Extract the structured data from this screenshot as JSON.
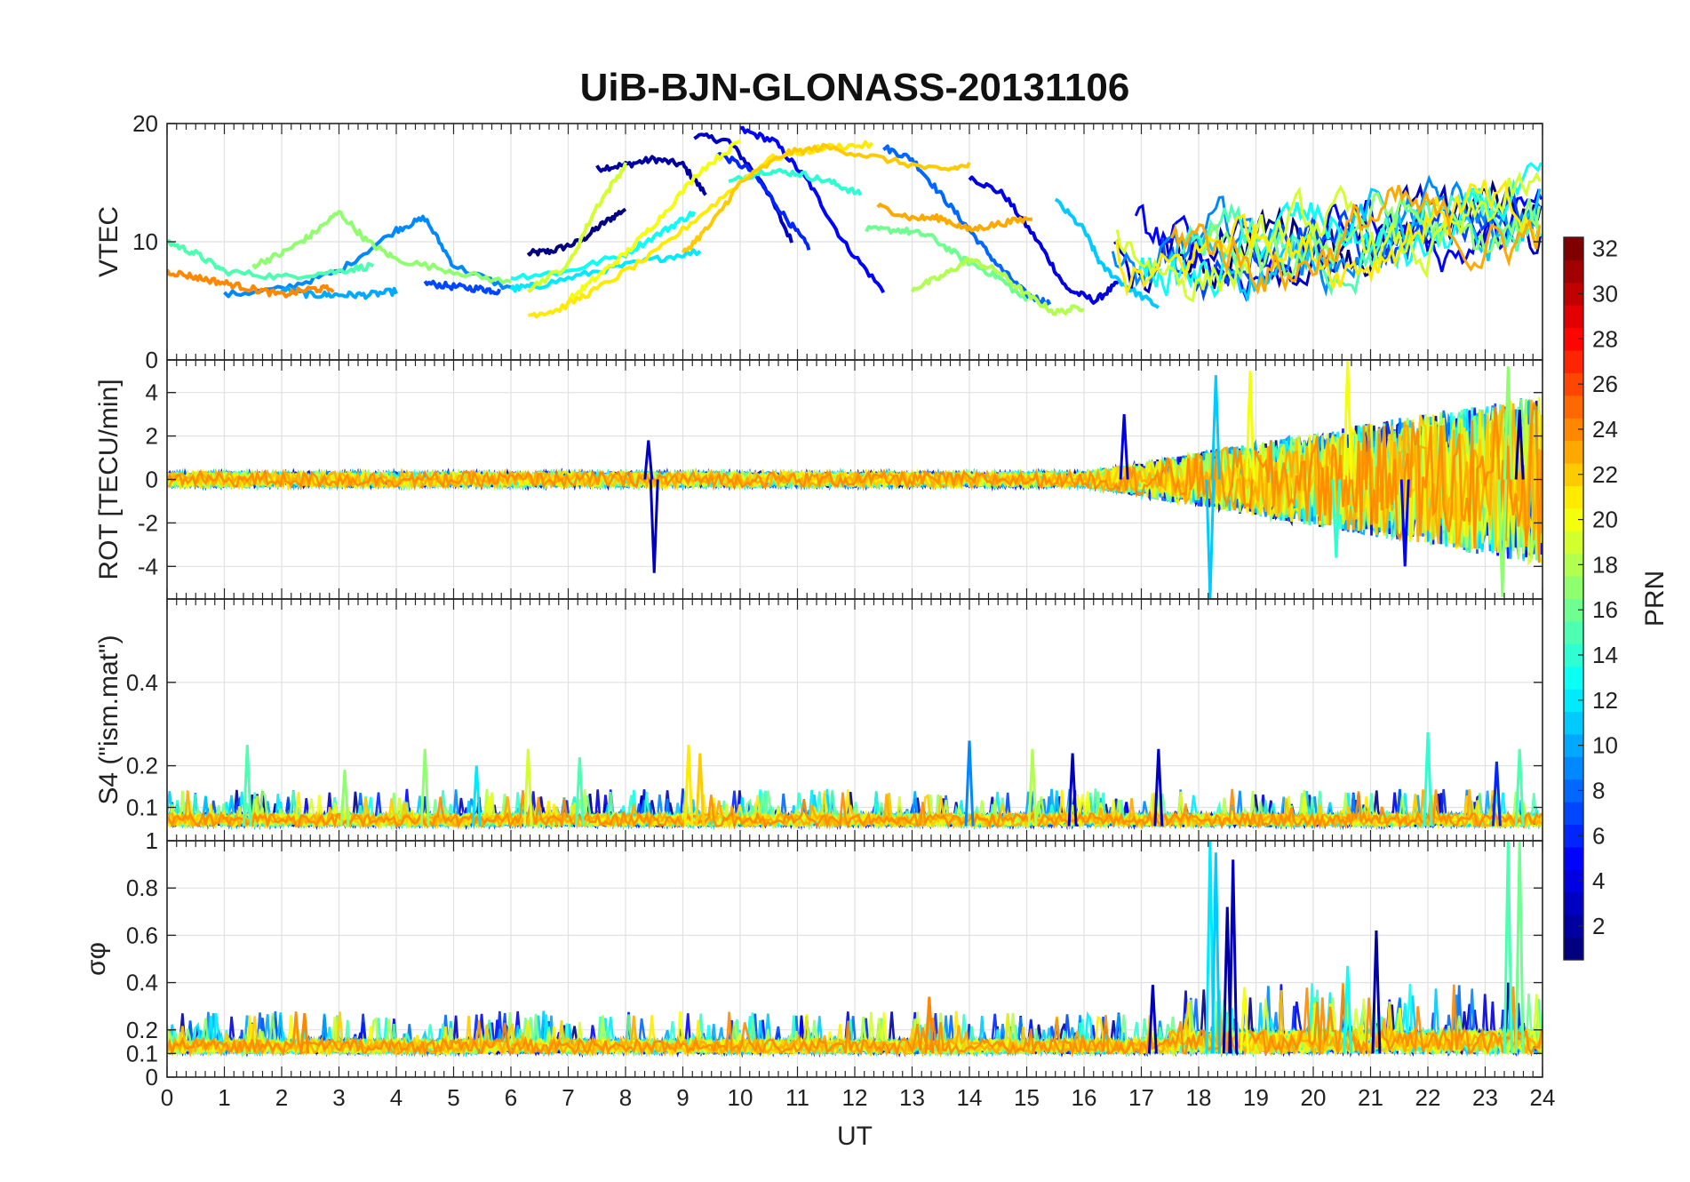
{
  "chart_data": {
    "type": "line",
    "title": "UiB-BJN-GLONASS-20131106",
    "xlabel": "UT",
    "xlim": [
      0,
      24
    ],
    "x_ticks": [
      "0",
      "1",
      "2",
      "3",
      "4",
      "5",
      "6",
      "7",
      "8",
      "9",
      "10",
      "11",
      "12",
      "13",
      "14",
      "15",
      "16",
      "17",
      "18",
      "19",
      "20",
      "21",
      "22",
      "23",
      "24"
    ],
    "grid": true,
    "colormap": "jet",
    "colorbar": {
      "label": "PRN",
      "range": [
        1,
        32
      ],
      "ticks": [
        "2",
        "4",
        "6",
        "8",
        "10",
        "12",
        "14",
        "16",
        "18",
        "20",
        "22",
        "24",
        "26",
        "28",
        "30",
        "32"
      ]
    },
    "panels": [
      {
        "id": "vtec",
        "ylabel": "VTEC",
        "ylim": [
          0,
          20
        ],
        "y_ticks": [
          "0",
          "10",
          "20"
        ],
        "series": [
          {
            "prn": 1,
            "x": [
              6.3,
              6.7,
              7.2,
              7.6,
              8.0
            ],
            "y": [
              9.0,
              9.2,
              10.0,
              11.5,
              12.8
            ]
          },
          {
            "prn": 2,
            "x": [
              7.5,
              8.0,
              8.5,
              9.0,
              9.4
            ],
            "y": [
              16.2,
              16.5,
              17.0,
              16.5,
              14.0
            ]
          },
          {
            "prn": 3,
            "x": [
              9.2,
              9.8,
              10.4,
              10.9
            ],
            "y": [
              19.0,
              18.5,
              15.0,
              10.0
            ]
          },
          {
            "prn": 4,
            "x": [
              14.0,
              14.6,
              15.2,
              15.7,
              16.2,
              16.6
            ],
            "y": [
              15.5,
              14.0,
              10.0,
              6.0,
              5.0,
              6.5
            ]
          },
          {
            "prn": 5,
            "x": [
              10.0,
              10.6,
              11.2,
              11.8,
              12.5
            ],
            "y": [
              19.5,
              18.5,
              15.0,
              10.0,
              5.8
            ]
          },
          {
            "prn": 6,
            "x": [
              9.6,
              10.2,
              10.8,
              11.2
            ],
            "y": [
              17.5,
              16.0,
              12.0,
              9.5
            ]
          },
          {
            "prn": 7,
            "x": [
              4.5,
              5.0,
              5.5,
              5.8
            ],
            "y": [
              6.5,
              6.2,
              6.0,
              5.8
            ]
          },
          {
            "prn": 8,
            "x": [
              12.5,
              13.0,
              13.5,
              14.0,
              14.5,
              15.0,
              15.4
            ],
            "y": [
              18.0,
              17.0,
              14.0,
              11.0,
              8.0,
              5.5,
              4.8
            ]
          },
          {
            "prn": 9,
            "x": [
              1.0,
              2.0,
              3.0,
              4.0,
              4.5,
              5.0,
              6.0
            ],
            "y": [
              5.5,
              6.0,
              7.5,
              11.0,
              12.0,
              8.0,
              6.0
            ]
          },
          {
            "prn": 10,
            "x": [
              2.0,
              2.5,
              3.0,
              3.5,
              4.0
            ],
            "y": [
              6.0,
              5.5,
              5.5,
              5.5,
              5.8
            ]
          },
          {
            "prn": 11,
            "x": [
              15.5,
              16.0,
              16.3,
              16.8,
              17.3
            ],
            "y": [
              13.5,
              11.0,
              8.0,
              6.0,
              4.5
            ]
          },
          {
            "prn": 12,
            "x": [
              6.0,
              6.5,
              7.5,
              8.5,
              9.3
            ],
            "y": [
              6.0,
              6.3,
              7.5,
              8.5,
              9.2
            ]
          },
          {
            "prn": 13,
            "x": [
              6.0,
              7.0,
              8.0,
              8.7,
              9.2
            ],
            "y": [
              7.0,
              7.5,
              9.0,
              11.0,
              12.5
            ]
          },
          {
            "prn": 14,
            "x": [
              9.8,
              10.4,
              11.0,
              11.6,
              12.1
            ],
            "y": [
              15.0,
              16.0,
              15.8,
              15.0,
              14.0
            ]
          },
          {
            "prn": 15,
            "x": [
              0.0,
              0.5,
              1.0,
              2.0,
              3.0,
              3.6
            ],
            "y": [
              10.0,
              9.0,
              7.5,
              7.0,
              7.5,
              8.0
            ]
          },
          {
            "prn": 16,
            "x": [
              12.2,
              12.8,
              13.3,
              13.9,
              14.5,
              15.0
            ],
            "y": [
              11.0,
              11.0,
              10.5,
              8.5,
              7.0,
              5.0
            ]
          },
          {
            "prn": 17,
            "x": [
              1.5,
              2.0,
              2.5,
              3.0,
              3.5,
              4.0,
              5.0,
              6.0
            ],
            "y": [
              8.0,
              9.0,
              10.5,
              12.5,
              10.0,
              8.5,
              7.5,
              6.5
            ]
          },
          {
            "prn": 18,
            "x": [
              13.0,
              13.5,
              14.0,
              14.5,
              15.0,
              15.5,
              16.0
            ],
            "y": [
              6.0,
              7.0,
              8.5,
              7.5,
              5.5,
              4.0,
              4.5
            ]
          },
          {
            "prn": 19,
            "x": [
              6.3,
              7.0,
              7.5,
              8.0
            ],
            "y": [
              6.0,
              8.0,
              13.0,
              16.5
            ]
          },
          {
            "prn": 20,
            "x": [
              7.0,
              7.5,
              8.0,
              8.6,
              9.3,
              10.0
            ],
            "y": [
              5.0,
              7.0,
              9.0,
              12.0,
              16.0,
              18.5
            ]
          },
          {
            "prn": 21,
            "x": [
              6.3,
              6.8,
              7.5,
              8.5,
              9.5,
              10.5,
              11.5,
              12.3
            ],
            "y": [
              3.8,
              4.2,
              6.0,
              9.0,
              13.0,
              17.0,
              18.0,
              18.2
            ]
          },
          {
            "prn": 22,
            "x": [
              9.0,
              9.5,
              10.0,
              10.8,
              11.5,
              12.5,
              13.5,
              14.0
            ],
            "y": [
              9.0,
              11.5,
              15.0,
              17.5,
              18.0,
              17.0,
              16.0,
              16.5
            ]
          },
          {
            "prn": 23,
            "x": [
              12.4,
              13.0,
              13.5,
              14.0,
              14.5,
              15.1
            ],
            "y": [
              13.0,
              12.0,
              12.0,
              11.0,
              11.5,
              12.0
            ]
          },
          {
            "prn": 24,
            "x": [
              0.0,
              0.5,
              1.0,
              1.5,
              2.0,
              2.5,
              2.9
            ],
            "y": [
              7.5,
              7.0,
              6.5,
              6.0,
              5.5,
              6.0,
              6.0
            ]
          }
        ]
      },
      {
        "id": "rot",
        "ylabel": "ROT [TECU/min]",
        "ylim": [
          -5.5,
          5.5
        ],
        "y_ticks": [
          "-4",
          "-2",
          "0",
          "2",
          "4"
        ],
        "spikes": [
          {
            "prn": 3,
            "x": 8.5,
            "y": -4.3
          },
          {
            "prn": 3,
            "x": 8.4,
            "y": 1.8
          },
          {
            "prn": 4,
            "x": 16.7,
            "y": 3.0
          },
          {
            "prn": 11,
            "x": 18.2,
            "y": -5.5
          },
          {
            "prn": 11,
            "x": 18.3,
            "y": 4.8
          },
          {
            "prn": 20,
            "x": 18.9,
            "y": 5.0
          },
          {
            "prn": 20,
            "x": 20.6,
            "y": 5.5
          },
          {
            "prn": 14,
            "x": 20.4,
            "y": -3.6
          },
          {
            "prn": 17,
            "x": 23.4,
            "y": 5.2
          },
          {
            "prn": 17,
            "x": 23.3,
            "y": -5.4
          },
          {
            "prn": 2,
            "x": 23.6,
            "y": 3.2
          },
          {
            "prn": 5,
            "x": 21.6,
            "y": -4.0
          }
        ]
      },
      {
        "id": "s4",
        "ylabel": "S4 (\"ism.mat\")",
        "ylim": [
          0.02,
          0.6
        ],
        "y_ticks": [
          "0.1",
          "0.2",
          "0.4"
        ],
        "spikes": [
          {
            "prn": 15,
            "x": 1.4,
            "y": 0.25
          },
          {
            "prn": 17,
            "x": 3.1,
            "y": 0.19
          },
          {
            "prn": 17,
            "x": 4.5,
            "y": 0.24
          },
          {
            "prn": 12,
            "x": 5.4,
            "y": 0.2
          },
          {
            "prn": 19,
            "x": 6.3,
            "y": 0.24
          },
          {
            "prn": 15,
            "x": 7.2,
            "y": 0.22
          },
          {
            "prn": 21,
            "x": 9.1,
            "y": 0.25
          },
          {
            "prn": 22,
            "x": 9.3,
            "y": 0.23
          },
          {
            "prn": 9,
            "x": 14.0,
            "y": 0.26
          },
          {
            "prn": 18,
            "x": 15.1,
            "y": 0.24
          },
          {
            "prn": 3,
            "x": 15.8,
            "y": 0.23
          },
          {
            "prn": 3,
            "x": 17.3,
            "y": 0.24
          },
          {
            "prn": 14,
            "x": 22.0,
            "y": 0.28
          },
          {
            "prn": 6,
            "x": 23.2,
            "y": 0.21
          },
          {
            "prn": 15,
            "x": 23.6,
            "y": 0.24
          }
        ]
      },
      {
        "id": "sigma_phi",
        "ylabel": "σφ",
        "ylim": [
          0,
          1
        ],
        "y_ticks": [
          "0",
          "0.1",
          "0.2",
          "0.4",
          "0.6",
          "0.8",
          "1"
        ],
        "spikes": [
          {
            "prn": 24,
            "x": 2.4,
            "y": 0.27
          },
          {
            "prn": 24,
            "x": 13.3,
            "y": 0.34
          },
          {
            "prn": 3,
            "x": 17.2,
            "y": 0.39
          },
          {
            "prn": 12,
            "x": 18.2,
            "y": 1.0
          },
          {
            "prn": 11,
            "x": 18.3,
            "y": 0.95
          },
          {
            "prn": 3,
            "x": 18.6,
            "y": 0.92
          },
          {
            "prn": 2,
            "x": 18.5,
            "y": 0.72
          },
          {
            "prn": 20,
            "x": 18.8,
            "y": 0.38
          },
          {
            "prn": 13,
            "x": 20.6,
            "y": 0.47
          },
          {
            "prn": 2,
            "x": 21.1,
            "y": 0.62
          },
          {
            "prn": 15,
            "x": 23.4,
            "y": 1.0
          },
          {
            "prn": 16,
            "x": 23.6,
            "y": 1.0
          }
        ]
      }
    ]
  }
}
